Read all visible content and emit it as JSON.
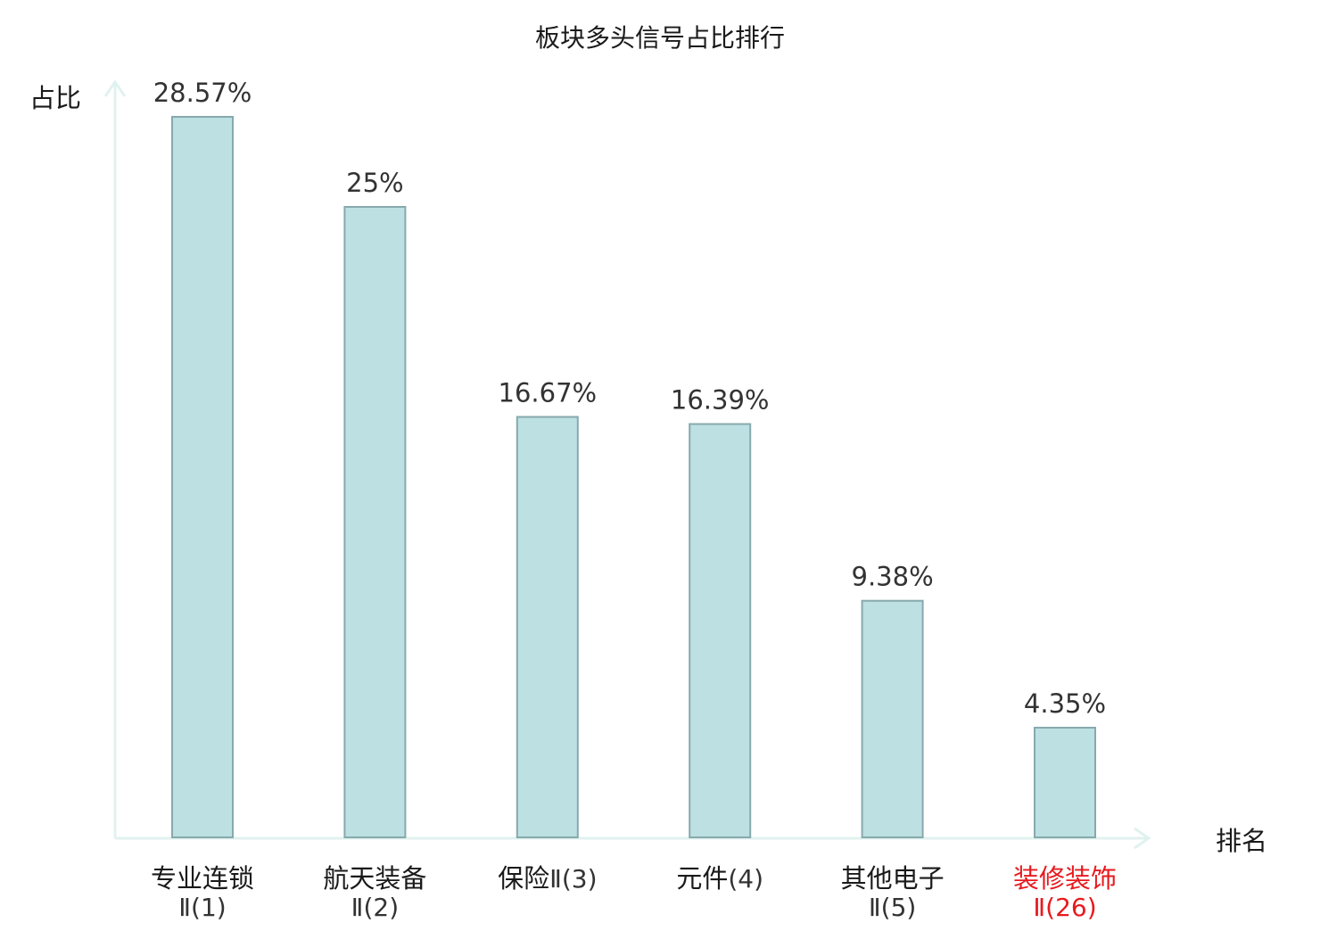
{
  "chart_data": {
    "type": "bar",
    "title": "板块多头信号占比排行",
    "ylabel": "占比",
    "xlabel": "排名",
    "categories": [
      {
        "name": "专业连锁",
        "rank": "Ⅱ(1)"
      },
      {
        "name": "航天装备",
        "rank": "Ⅱ(2)"
      },
      {
        "name": "保险",
        "rank": "Ⅱ(3)"
      },
      {
        "name": "元件",
        "rank": "(4)"
      },
      {
        "name": "其他电子",
        "rank": "Ⅱ(5)"
      },
      {
        "name": "装修装饰",
        "rank": "Ⅱ(26)"
      }
    ],
    "values": [
      28.57,
      25,
      16.67,
      16.39,
      9.38,
      4.35
    ],
    "value_labels": [
      "28.57%",
      "25%",
      "16.67%",
      "16.39%",
      "9.38%",
      "4.35%"
    ],
    "highlight_index": 5,
    "ylim": [
      0,
      28.57
    ],
    "grid": false,
    "colors": {
      "bar_fill": "#bde0e3",
      "bar_stroke": "#87a9ad",
      "axis": "#e0f2ef",
      "text": "#333333",
      "highlight": "#e8191e"
    }
  }
}
